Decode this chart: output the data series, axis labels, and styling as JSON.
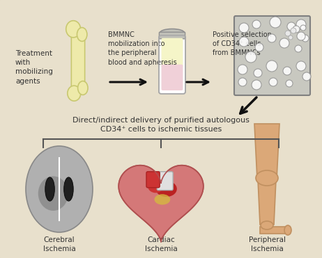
{
  "bg_color": "#e8e0cc",
  "border_color": "#888888",
  "text_color": "#333333",
  "arrow_color": "#111111",
  "fig_width": 4.62,
  "fig_height": 3.71,
  "dpi": 100,
  "step1_label": "Treatment\nwith\nmobilizing\nagents",
  "step2_label": "BMMNC\nmobilization into\nthe peripheral\nblood and apheresis",
  "step3_label": "Positive selection\nof CD34⁺ cells\nfrom BMMNCs",
  "mid_label": "Direct/indirect delivery of purified autologous\nCD34⁺ cells to ischemic tissues",
  "label1": "Cerebral\nIschemia",
  "label2": "Cardiac\nIschemia",
  "label3": "Peripheral\nIschemia",
  "bone_color": "#eeeaaa",
  "bone_outline": "#c8c870",
  "tube_cap_color": "#c0c0b8",
  "tube_body_color": "#f5f5d8",
  "tube_liquid_top": "#f0f0d0",
  "tube_liquid_bot": "#f0d0d0",
  "cell_bg_color": "#c0c0b8",
  "heart_main_color": "#d47878",
  "heart_dark_color": "#bb2222",
  "heart_mid_color": "#cc3333",
  "brain_outer_color": "#b0b0b0",
  "brain_shadow_color": "#909090",
  "brain_lobe_color": "#202020",
  "leg_skin_color": "#dba878",
  "leg_outline": "#c09060"
}
